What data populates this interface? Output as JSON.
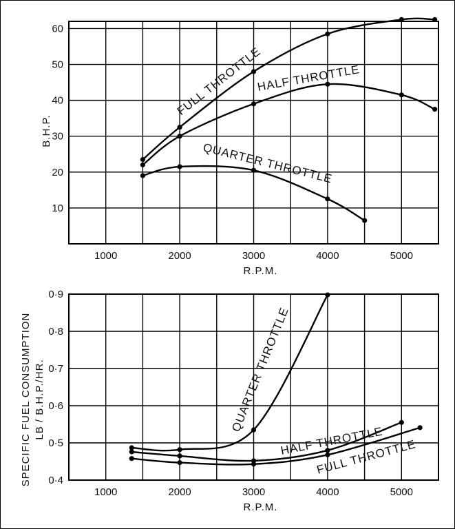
{
  "chart_data": [
    {
      "type": "line",
      "xlabel": "R.P.M.",
      "ylabel": "B.H.P.",
      "xlim": [
        500,
        5500
      ],
      "ylim": [
        0,
        62
      ],
      "x_ticks": [
        "1000",
        "2000",
        "3000",
        "4000",
        "5000"
      ],
      "y_ticks": [
        "10",
        "20",
        "30",
        "40",
        "50",
        "60"
      ],
      "grid": true,
      "series": [
        {
          "name": "FULL THROTTLE",
          "x": [
            1500,
            2000,
            3000,
            4000,
            5000,
            5450
          ],
          "y": [
            23.5,
            32.5,
            48,
            58.5,
            62.5,
            62.5
          ]
        },
        {
          "name": "HALF THROTTLE",
          "x": [
            1500,
            2000,
            3000,
            4000,
            5000,
            5450
          ],
          "y": [
            22,
            30,
            39,
            44.5,
            41.5,
            37.5
          ]
        },
        {
          "name": "QUARTER THROTTLE",
          "x": [
            1500,
            2000,
            3000,
            4000,
            4500
          ],
          "y": [
            19,
            21.5,
            20.5,
            12.5,
            6.5
          ]
        }
      ]
    },
    {
      "type": "line",
      "xlabel": "R.P.M.",
      "ylabel": "SPECIFIC FUEL CONSUMPTION",
      "ylabel2": "LB / B.H.P./HR.",
      "xlim": [
        500,
        5500
      ],
      "ylim": [
        0.4,
        0.9
      ],
      "x_ticks": [
        "1000",
        "2000",
        "3000",
        "4000",
        "5000"
      ],
      "y_ticks": [
        "0·4",
        "0·5",
        "0·6",
        "0·7",
        "0·8",
        "0·9"
      ],
      "grid": true,
      "series": [
        {
          "name": "QUARTER THROTTLE",
          "x": [
            1350,
            2000,
            3000,
            4000
          ],
          "y": [
            0.487,
            0.482,
            0.535,
            0.898
          ]
        },
        {
          "name": "HALF THROTTLE",
          "x": [
            1350,
            2000,
            3000,
            4000,
            5000
          ],
          "y": [
            0.476,
            0.465,
            0.452,
            0.48,
            0.555
          ]
        },
        {
          "name": "FULL THROTTLE",
          "x": [
            1350,
            2000,
            3000,
            4000,
            5250
          ],
          "y": [
            0.458,
            0.447,
            0.443,
            0.468,
            0.541
          ]
        }
      ]
    }
  ]
}
